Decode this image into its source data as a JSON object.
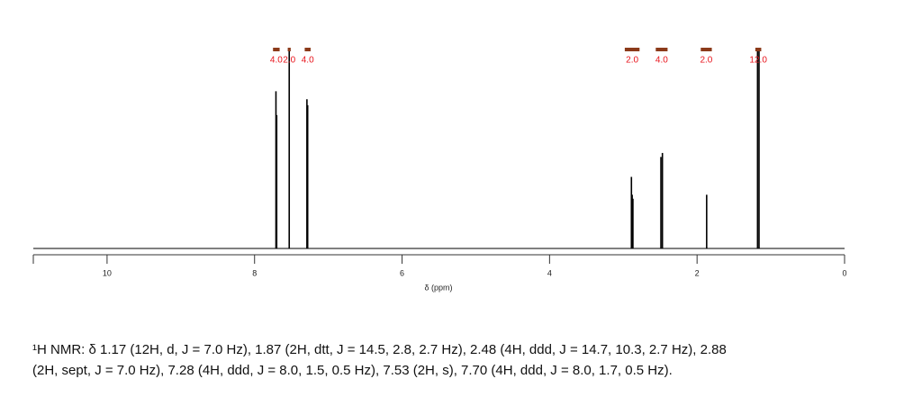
{
  "chart_data": {
    "type": "spectrum",
    "xlabel": "δ (ppm)",
    "xlim": [
      11,
      0
    ],
    "xticks": [
      10,
      8,
      6,
      4,
      2,
      0
    ],
    "ylim": [
      0,
      100
    ],
    "color": "#000000",
    "peaks": {
      "x": [
        7.71,
        7.7,
        7.53,
        7.29,
        7.28,
        2.89,
        2.88,
        2.87,
        2.49,
        2.47,
        1.87,
        1.18,
        1.16
      ],
      "values": [
        79,
        67,
        100,
        75,
        72,
        36,
        27,
        25,
        46,
        48,
        27,
        100,
        100
      ]
    },
    "integrals": {
      "color": "#8b3a1a",
      "label_color": "#e8141c",
      "ranges": [
        [
          7.75,
          7.66
        ],
        [
          7.55,
          7.51
        ],
        [
          7.32,
          7.24
        ],
        [
          2.98,
          2.78
        ],
        [
          2.56,
          2.4
        ],
        [
          1.95,
          1.8
        ],
        [
          1.21,
          1.13
        ]
      ],
      "values": [
        4,
        2,
        4,
        2,
        4,
        2,
        12
      ],
      "value_labels": [
        "4.0",
        "2.0",
        "4.0",
        "2.0",
        "4.0",
        "2.0",
        "12.0"
      ]
    }
  },
  "caption": [
    "¹H NMR: δ 1.17 (12H, d, J = 7.0 Hz), 1.87 (2H, dtt, J = 14.5, 2.8, 2.7 Hz), 2.48 (4H, ddd, J = 14.7, 10.3, 2.7 Hz), 2.88",
    "(2H, sept, J = 7.0 Hz), 7.28 (4H, ddd, J = 8.0, 1.5, 0.5 Hz), 7.53 (2H, s), 7.70 (4H, ddd, J = 8.0, 1.7, 0.5 Hz)."
  ]
}
